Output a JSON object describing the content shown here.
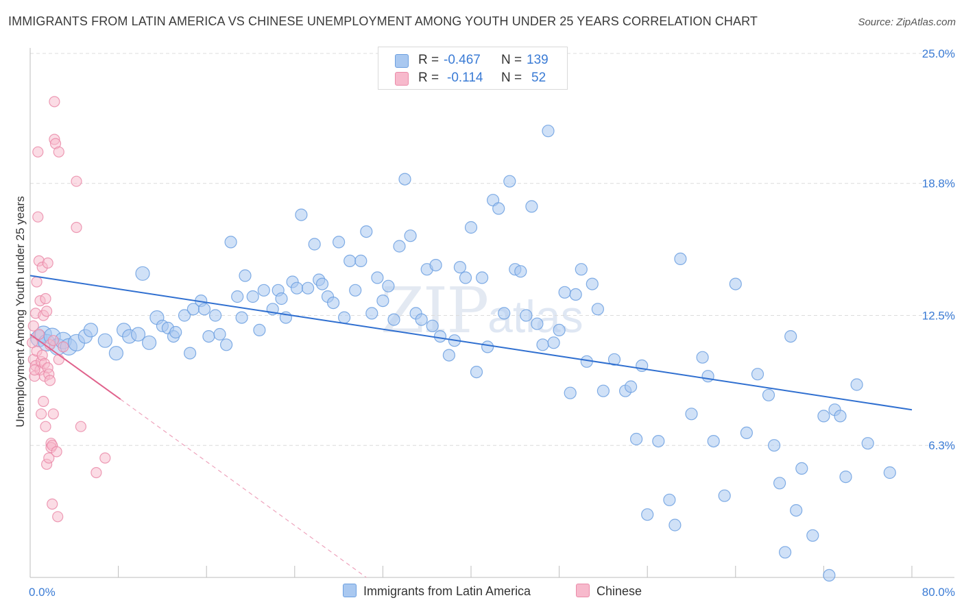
{
  "title": "IMMIGRANTS FROM LATIN AMERICA VS CHINESE UNEMPLOYMENT AMONG YOUTH UNDER 25 YEARS CORRELATION CHART",
  "source": "Source: ZipAtlas.com",
  "watermark": {
    "main": "ZIP",
    "sub": "atlas"
  },
  "legend": {
    "rows": [
      {
        "r_label": "R =",
        "r_value": "-0.467",
        "n_label": "N =",
        "n_value": "139",
        "color": "#a9c8f0",
        "edge": "#6b9fe0"
      },
      {
        "r_label": "R =",
        "r_value": "-0.114",
        "n_label": "N =",
        "n_value": "52",
        "color": "#f7b9cc",
        "edge": "#ea8aa8"
      }
    ]
  },
  "bottom_legend": [
    {
      "label": "Immigrants from Latin America",
      "color": "#a9c8f0",
      "edge": "#6b9fe0"
    },
    {
      "label": "Chinese",
      "color": "#f7b9cc",
      "edge": "#ea8aa8"
    }
  ],
  "chart_data": {
    "type": "scatter",
    "title": "IMMIGRANTS FROM LATIN AMERICA VS CHINESE UNEMPLOYMENT AMONG YOUTH UNDER 25 YEARS CORRELATION CHART",
    "xlabel": "",
    "ylabel": "Unemployment Among Youth under 25 years",
    "xlim": [
      0,
      80
    ],
    "ylim": [
      0,
      25
    ],
    "x_tick_labels": [
      "0.0%",
      "80.0%"
    ],
    "y_ticks": [
      6.3,
      12.5,
      18.8,
      25.0
    ],
    "y_tick_labels": [
      "6.3%",
      "12.5%",
      "18.8%",
      "25.0%"
    ],
    "grid": true,
    "legend_position": "top-center",
    "series": [
      {
        "name": "Immigrants from Latin America",
        "color": "#6b9fe0",
        "fill": "#a9c8f0",
        "trend": {
          "x": [
            0,
            80
          ],
          "y": [
            14.4,
            8.0
          ]
        },
        "points": [
          [
            0.8,
            11.4
          ],
          [
            1.2,
            11.6
          ],
          [
            1.5,
            11.2
          ],
          [
            2.0,
            11.5
          ],
          [
            2.5,
            11.0
          ],
          [
            3.0,
            11.3
          ],
          [
            3.5,
            11.0
          ],
          [
            4.2,
            11.2
          ],
          [
            5.0,
            11.5
          ],
          [
            5.5,
            11.8
          ],
          [
            6.8,
            11.3
          ],
          [
            7.8,
            10.7
          ],
          [
            8.5,
            11.8
          ],
          [
            9.0,
            11.5
          ],
          [
            9.8,
            11.6
          ],
          [
            10.2,
            14.5
          ],
          [
            10.8,
            11.2
          ],
          [
            11.5,
            12.4
          ],
          [
            12.0,
            12.0
          ],
          [
            12.5,
            11.9
          ],
          [
            13.0,
            11.5
          ],
          [
            13.2,
            11.7
          ],
          [
            14.0,
            12.5
          ],
          [
            14.5,
            10.7
          ],
          [
            14.8,
            12.8
          ],
          [
            15.5,
            13.2
          ],
          [
            15.8,
            12.8
          ],
          [
            16.2,
            11.5
          ],
          [
            16.8,
            12.5
          ],
          [
            17.2,
            11.6
          ],
          [
            17.8,
            11.1
          ],
          [
            18.2,
            16.0
          ],
          [
            18.8,
            13.4
          ],
          [
            19.2,
            12.4
          ],
          [
            19.5,
            14.4
          ],
          [
            20.2,
            13.4
          ],
          [
            20.8,
            11.8
          ],
          [
            21.2,
            13.7
          ],
          [
            22.0,
            12.8
          ],
          [
            22.5,
            13.7
          ],
          [
            22.8,
            13.3
          ],
          [
            23.2,
            12.4
          ],
          [
            23.8,
            14.1
          ],
          [
            24.2,
            13.8
          ],
          [
            24.6,
            17.3
          ],
          [
            25.2,
            13.8
          ],
          [
            25.8,
            15.9
          ],
          [
            26.2,
            14.2
          ],
          [
            26.5,
            14.0
          ],
          [
            27.0,
            13.4
          ],
          [
            27.5,
            13.1
          ],
          [
            28.0,
            16.0
          ],
          [
            28.5,
            12.4
          ],
          [
            29.0,
            15.1
          ],
          [
            29.5,
            13.7
          ],
          [
            30.0,
            15.1
          ],
          [
            30.5,
            16.5
          ],
          [
            31.0,
            12.6
          ],
          [
            31.5,
            14.3
          ],
          [
            32.0,
            13.2
          ],
          [
            32.5,
            13.9
          ],
          [
            33.0,
            12.3
          ],
          [
            33.5,
            15.8
          ],
          [
            34.0,
            19.0
          ],
          [
            34.5,
            16.3
          ],
          [
            35.0,
            12.6
          ],
          [
            35.5,
            12.3
          ],
          [
            36.0,
            14.7
          ],
          [
            36.5,
            12.0
          ],
          [
            36.8,
            14.9
          ],
          [
            37.2,
            11.5
          ],
          [
            38.0,
            10.6
          ],
          [
            38.5,
            11.3
          ],
          [
            39.0,
            14.8
          ],
          [
            39.5,
            14.3
          ],
          [
            40.0,
            16.7
          ],
          [
            40.5,
            9.8
          ],
          [
            41.0,
            14.3
          ],
          [
            41.5,
            11.0
          ],
          [
            42.0,
            18.0
          ],
          [
            42.5,
            17.6
          ],
          [
            43.0,
            12.6
          ],
          [
            43.5,
            18.9
          ],
          [
            44.0,
            14.7
          ],
          [
            44.5,
            14.6
          ],
          [
            45.0,
            12.5
          ],
          [
            45.5,
            17.7
          ],
          [
            46.0,
            12.1
          ],
          [
            46.5,
            11.1
          ],
          [
            47.0,
            21.3
          ],
          [
            47.5,
            11.2
          ],
          [
            48.0,
            11.8
          ],
          [
            48.5,
            13.6
          ],
          [
            49.0,
            8.8
          ],
          [
            49.5,
            13.5
          ],
          [
            50.0,
            14.7
          ],
          [
            50.5,
            10.3
          ],
          [
            51.0,
            14.0
          ],
          [
            51.5,
            12.8
          ],
          [
            52.0,
            8.9
          ],
          [
            53.0,
            10.4
          ],
          [
            54.0,
            8.9
          ],
          [
            54.5,
            9.1
          ],
          [
            55.0,
            6.6
          ],
          [
            55.5,
            10.1
          ],
          [
            56.0,
            3.0
          ],
          [
            57.0,
            6.5
          ],
          [
            58.0,
            3.7
          ],
          [
            58.5,
            2.5
          ],
          [
            59.0,
            15.2
          ],
          [
            60.0,
            7.8
          ],
          [
            61.0,
            10.5
          ],
          [
            61.5,
            9.6
          ],
          [
            62.0,
            6.5
          ],
          [
            63.0,
            3.9
          ],
          [
            64.0,
            14.0
          ],
          [
            65.0,
            6.9
          ],
          [
            66.0,
            9.7
          ],
          [
            67.0,
            8.7
          ],
          [
            67.5,
            6.3
          ],
          [
            68.0,
            4.5
          ],
          [
            68.5,
            1.2
          ],
          [
            69.0,
            11.5
          ],
          [
            69.5,
            3.2
          ],
          [
            70.0,
            5.2
          ],
          [
            71.0,
            2.0
          ],
          [
            72.0,
            7.7
          ],
          [
            72.5,
            0.1
          ],
          [
            73.0,
            8.0
          ],
          [
            73.5,
            7.7
          ],
          [
            74.0,
            4.8
          ],
          [
            75.0,
            9.2
          ],
          [
            76.0,
            6.4
          ],
          [
            78.0,
            5.0
          ]
        ]
      },
      {
        "name": "Chinese",
        "color": "#ea8aa8",
        "fill": "#f7b9cc",
        "trend": {
          "x": [
            0,
            8.2
          ],
          "y": [
            11.6,
            8.5
          ],
          "dashed_extension_to": [
            30.5,
            0
          ]
        },
        "points": [
          [
            0.2,
            11.2
          ],
          [
            0.3,
            10.4
          ],
          [
            0.3,
            12.0
          ],
          [
            0.4,
            9.6
          ],
          [
            0.5,
            10.1
          ],
          [
            0.5,
            12.6
          ],
          [
            0.6,
            10.8
          ],
          [
            0.6,
            14.1
          ],
          [
            0.7,
            20.3
          ],
          [
            0.7,
            17.2
          ],
          [
            0.8,
            11.6
          ],
          [
            0.8,
            15.1
          ],
          [
            0.9,
            9.9
          ],
          [
            0.9,
            13.2
          ],
          [
            1.0,
            10.3
          ],
          [
            1.0,
            7.8
          ],
          [
            1.1,
            10.6
          ],
          [
            1.1,
            14.8
          ],
          [
            1.2,
            12.5
          ],
          [
            1.2,
            8.4
          ],
          [
            1.3,
            10.2
          ],
          [
            1.3,
            9.6
          ],
          [
            1.4,
            13.3
          ],
          [
            1.4,
            7.2
          ],
          [
            1.5,
            12.7
          ],
          [
            1.5,
            5.4
          ],
          [
            1.6,
            15.0
          ],
          [
            1.6,
            10.0
          ],
          [
            1.7,
            9.7
          ],
          [
            1.7,
            5.7
          ],
          [
            1.8,
            11.1
          ],
          [
            1.8,
            9.4
          ],
          [
            1.9,
            6.4
          ],
          [
            1.9,
            6.2
          ],
          [
            2.0,
            6.3
          ],
          [
            2.0,
            3.5
          ],
          [
            2.1,
            7.8
          ],
          [
            2.1,
            11.3
          ],
          [
            2.2,
            22.7
          ],
          [
            2.2,
            20.9
          ],
          [
            2.3,
            20.7
          ],
          [
            2.4,
            6.0
          ],
          [
            2.5,
            2.9
          ],
          [
            2.6,
            20.3
          ],
          [
            2.6,
            10.4
          ],
          [
            4.2,
            18.9
          ],
          [
            4.2,
            16.7
          ],
          [
            4.6,
            7.2
          ],
          [
            6.0,
            5.0
          ],
          [
            6.8,
            5.7
          ],
          [
            3.0,
            11.0
          ],
          [
            0.4,
            9.9
          ]
        ]
      }
    ]
  }
}
